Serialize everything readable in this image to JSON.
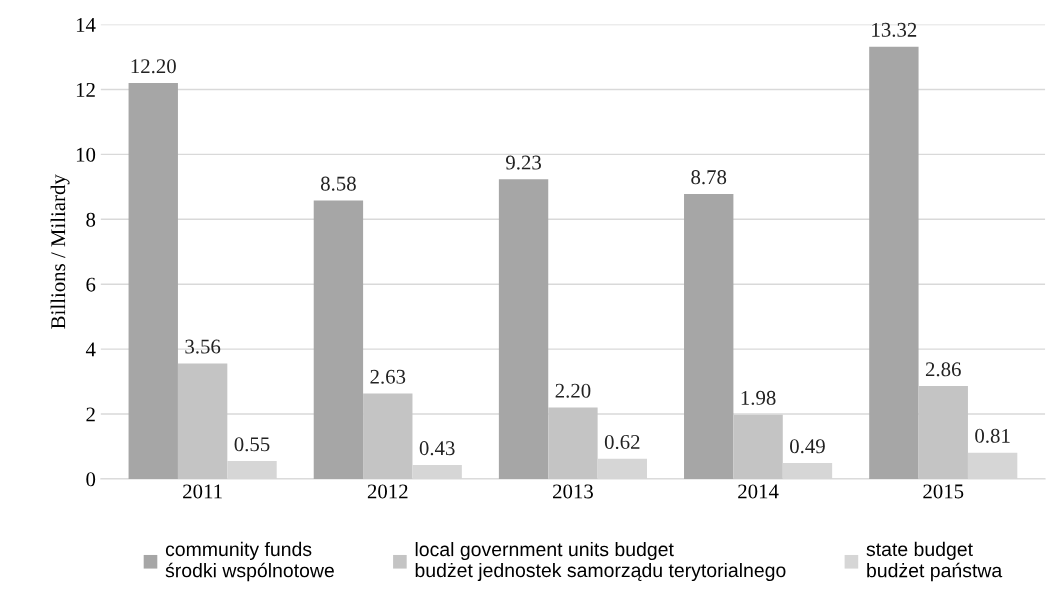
{
  "chart_data": {
    "type": "bar",
    "ylabel": "Billions / Miliardy",
    "categories": [
      "2011",
      "2012",
      "2013",
      "2014",
      "2015"
    ],
    "series": [
      {
        "name": "community funds\nśrodki wspólnotowe",
        "color": "#a6a6a6",
        "values": [
          12.2,
          8.58,
          9.23,
          8.78,
          13.32
        ],
        "value_labels": [
          "12.20",
          "8.58",
          "9.23",
          "8.78",
          "13.32"
        ]
      },
      {
        "name": "local government units budget\nbudżet jednostek samorządu terytorialnego",
        "color": "#c4c4c4",
        "values": [
          3.56,
          2.63,
          2.2,
          1.98,
          2.86
        ],
        "value_labels": [
          "3.56",
          "2.63",
          "2.20",
          "1.98",
          "2.86"
        ]
      },
      {
        "name": "state budget\nbudżet państwa",
        "color": "#d6d6d6",
        "values": [
          0.55,
          0.43,
          0.62,
          0.49,
          0.81
        ],
        "value_labels": [
          "0.55",
          "0.43",
          "0.62",
          "0.49",
          "0.81"
        ]
      }
    ],
    "ylim": [
      0,
      14
    ],
    "yticks": [
      0,
      2,
      4,
      6,
      8,
      10,
      12,
      14
    ],
    "grid": "y",
    "legend": "bottom"
  }
}
